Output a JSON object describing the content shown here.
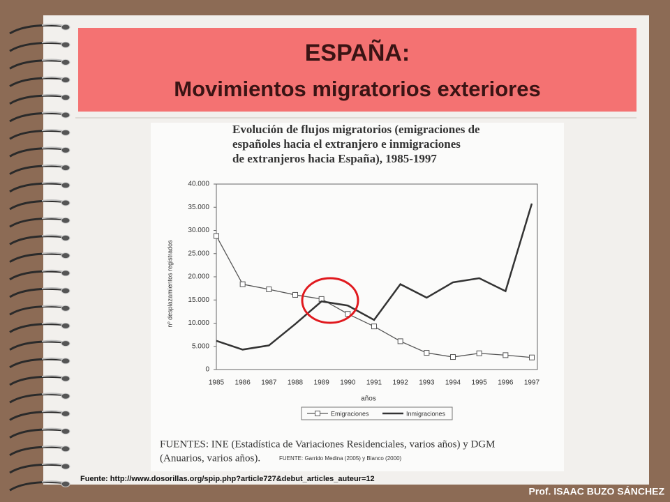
{
  "slide": {
    "title": "ESPAÑA:",
    "subtitle": "Movimientos migratorios exteriores",
    "source": "Fuente: http://www.dosorillas.org/spip.php?article727&debut_articles_auteur=12",
    "author": "Prof. ISAAC BUZO SÁNCHEZ"
  },
  "chart_data": {
    "type": "line",
    "title": [
      "Evolución de flujos migratorios (emigraciones de",
      "españoles hacia el extranjero e inmigraciones",
      "de extranjeros hacia España), 1985-1997"
    ],
    "ylabel": "nº desplazamientos registrados",
    "xlabel": "años",
    "categories": [
      "1985",
      "1986",
      "1987",
      "1988",
      "1989",
      "1990",
      "1991",
      "1992",
      "1993",
      "1994",
      "1995",
      "1996",
      "1997"
    ],
    "series": [
      {
        "name": "Emigraciones",
        "color": "#555555",
        "marker": "square",
        "values": [
          28800,
          18400,
          17300,
          16100,
          15200,
          12000,
          9300,
          6100,
          3600,
          2700,
          3500,
          3100,
          2600
        ]
      },
      {
        "name": "Inmigraciones",
        "color": "#333333",
        "marker": "none",
        "values": [
          6200,
          4300,
          5200,
          9800,
          14700,
          13800,
          10700,
          18400,
          15500,
          18800,
          19700,
          16900,
          35800
        ]
      }
    ],
    "ylim": [
      0,
      40000
    ],
    "yticks": [
      0,
      {
        "value": 5000,
        "label": "5.000"
      },
      {
        "value": 10000,
        "label": "10.000"
      },
      {
        "value": 15000,
        "label": "15.000"
      },
      {
        "value": 20000,
        "label": "20.000"
      },
      {
        "value": 25000,
        "label": "25.000"
      },
      {
        "value": 30000,
        "label": "30.000"
      },
      {
        "value": 35000,
        "label": "35.000"
      },
      {
        "value": 40000,
        "label": "40.000"
      }
    ],
    "footer": [
      "FUENTES: INE (Estadística de Variaciones Residenciales, varios años) y DGM",
      "(Anuarios, varios años)."
    ],
    "footer_note": "FUENTE: Garrido Medina (2005) y Blanco (2000)"
  }
}
